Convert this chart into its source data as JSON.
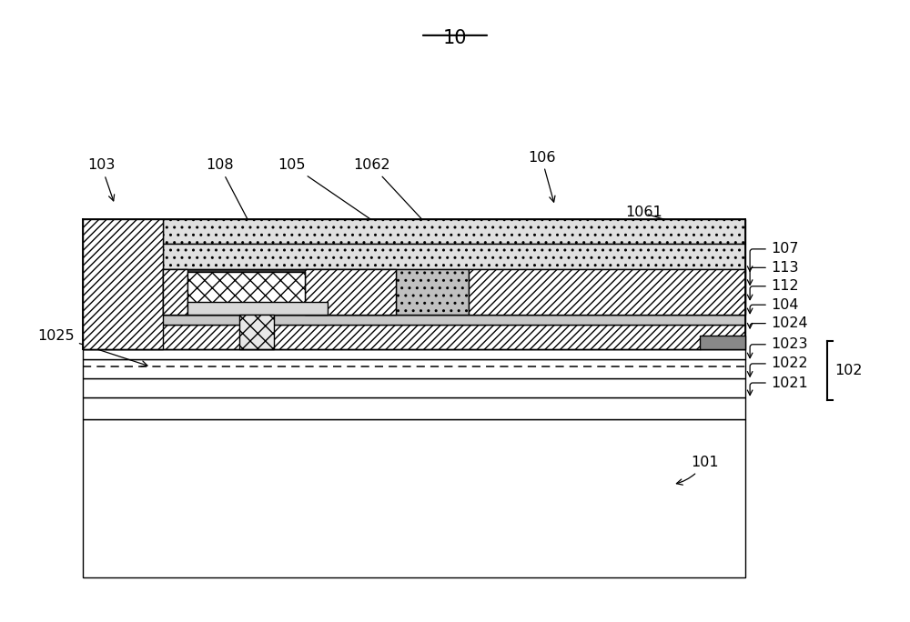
{
  "bg_color": "#ffffff",
  "fig_width": 10.0,
  "fig_height": 6.84,
  "lw": 1.0,
  "xl": 0.09,
  "xr": 0.82,
  "label_fs": 11.5
}
